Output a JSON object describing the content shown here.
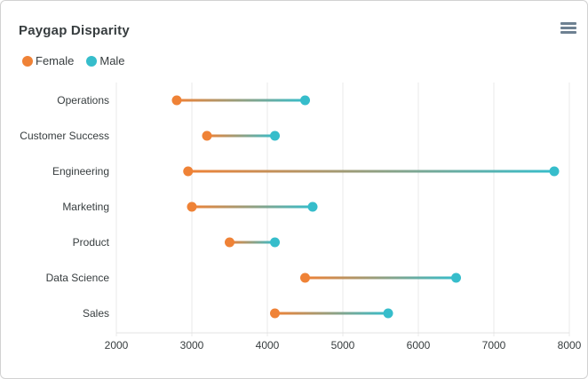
{
  "card": {
    "title": "Paygap Disparity"
  },
  "menu_icon": {
    "name": "hamburger-menu",
    "color": "#6e8192"
  },
  "legend": {
    "position": "top-left",
    "items": [
      {
        "label": "Female",
        "color": "#EF8236"
      },
      {
        "label": "Male",
        "color": "#36BDCB"
      }
    ]
  },
  "colors": {
    "text": "#373d3f",
    "gridline": "#e8e8e8",
    "axis_line": "#e3e3e3",
    "card_border": "#d2d2d2"
  },
  "chart_data": {
    "type": "dumbbell",
    "orientation": "horizontal",
    "title": "Paygap Disparity",
    "categories": [
      "Operations",
      "Customer Success",
      "Engineering",
      "Marketing",
      "Product",
      "Data Science",
      "Sales"
    ],
    "series": [
      {
        "name": "Female",
        "color": "#EF8236",
        "values": [
          2800,
          3200,
          2950,
          3000,
          3500,
          4500,
          4100
        ]
      },
      {
        "name": "Male",
        "color": "#36BDCB",
        "values": [
          4500,
          4100,
          7800,
          4600,
          4100,
          6500,
          5600
        ]
      }
    ],
    "xlabel": "",
    "ylabel": "",
    "xlim": [
      2000,
      8000
    ],
    "x_ticks": [
      2000,
      3000,
      4000,
      5000,
      6000,
      7000,
      8000
    ],
    "grid": "vertical-gridlines-only",
    "legend_position": "top-left",
    "connector": "gradient female-to-male, 3px",
    "marker_radius": 5.5
  }
}
